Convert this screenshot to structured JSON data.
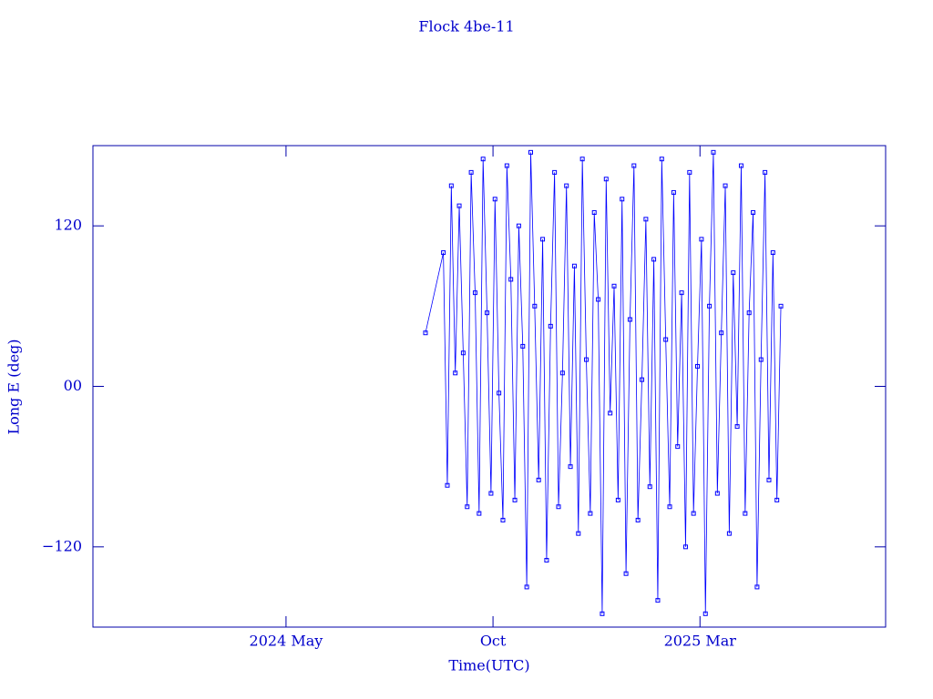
{
  "chart_data": {
    "type": "line",
    "title": "Flock 4be-11",
    "x_label": "Time(UTC)",
    "y_label": "Long E (deg)",
    "color": "#0000ff",
    "markers": true,
    "xlim": [
      2023.944,
      2025.541
    ],
    "xticks": [
      {
        "value": 2024.333,
        "label": "2024 May"
      },
      {
        "value": 2024.75,
        "label": "Oct"
      },
      {
        "value": 2025.167,
        "label": "2025 Mar"
      }
    ],
    "ylim": [
      -180,
      180
    ],
    "yticks": [
      {
        "value": -120,
        "label": "−120"
      },
      {
        "value": 0,
        "label": "00"
      },
      120
    ],
    "x": [
      2024.614,
      2024.65,
      2024.658,
      2024.666,
      2024.674,
      2024.682,
      2024.69,
      2024.698,
      2024.706,
      2024.714,
      2024.722,
      2024.73,
      2024.738,
      2024.746,
      2024.754,
      2024.762,
      2024.77,
      2024.778,
      2024.786,
      2024.794,
      2024.802,
      2024.81,
      2024.818,
      2024.826,
      2024.834,
      2024.842,
      2024.85,
      2024.858,
      2024.866,
      2024.874,
      2024.882,
      2024.89,
      2024.898,
      2024.906,
      2024.914,
      2024.922,
      2024.93,
      2024.938,
      2024.946,
      2024.954,
      2024.962,
      2024.97,
      2024.978,
      2024.986,
      2024.994,
      2025.002,
      2025.01,
      2025.018,
      2025.026,
      2025.034,
      2025.042,
      2025.05,
      2025.058,
      2025.066,
      2025.074,
      2025.082,
      2025.09,
      2025.098,
      2025.106,
      2025.114,
      2025.122,
      2025.13,
      2025.138,
      2025.146,
      2025.154,
      2025.162,
      2025.17,
      2025.178,
      2025.186,
      2025.194,
      2025.202,
      2025.21,
      2025.218,
      2025.226,
      2025.234,
      2025.242,
      2025.25,
      2025.258,
      2025.266,
      2025.274,
      2025.282,
      2025.29,
      2025.298,
      2025.306,
      2025.314,
      2025.322,
      2025.33
    ],
    "values": [
      40,
      100,
      -74,
      150,
      10,
      135,
      25,
      -90,
      160,
      70,
      -95,
      170,
      55,
      -80,
      140,
      -5,
      -100,
      165,
      80,
      -85,
      120,
      30,
      -150,
      175,
      60,
      -70,
      110,
      -130,
      45,
      160,
      -90,
      10,
      150,
      -60,
      90,
      -110,
      170,
      20,
      -95,
      130,
      65,
      -170,
      155,
      -20,
      75,
      -85,
      140,
      -140,
      50,
      165,
      -100,
      5,
      125,
      -75,
      95,
      -160,
      170,
      35,
      -90,
      145,
      -45,
      70,
      -120,
      160,
      -95,
      15,
      110,
      -170,
      60,
      175,
      -80,
      40,
      150,
      -110,
      85,
      -30,
      165,
      -95,
      55,
      130,
      -150,
      20,
      160,
      -70,
      100,
      -85,
      60
    ]
  }
}
